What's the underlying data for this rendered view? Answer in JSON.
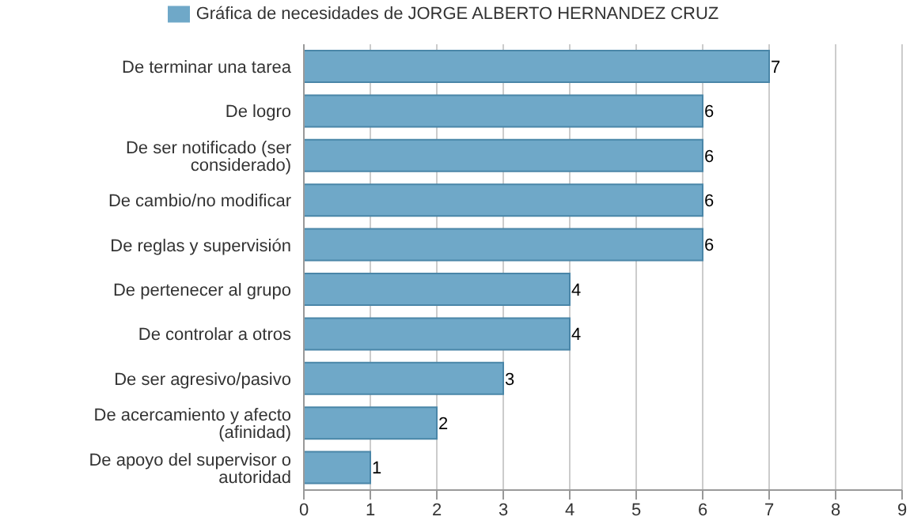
{
  "chart_data": {
    "type": "bar",
    "orientation": "horizontal",
    "categories": [
      "De terminar una tarea",
      "De logro",
      "De ser notificado (ser considerado)",
      "De cambio/no modificar",
      "De reglas y supervisión",
      "De pertenecer al grupo",
      "De controlar a otros",
      "De ser agresivo/pasivo",
      "De acercamiento y afecto (afinidad)",
      "De apoyo del supervisor o autoridad"
    ],
    "series": [
      {
        "name": "Gráfica de necesidades de JORGE ALBERTO HERNANDEZ CRUZ",
        "color": "#6fa8c8",
        "values": [
          7,
          6,
          6,
          6,
          6,
          4,
          4,
          3,
          2,
          1
        ]
      }
    ],
    "xlim": [
      0,
      9
    ],
    "xticks": [
      0,
      1,
      2,
      3,
      4,
      5,
      6,
      7,
      8,
      9
    ],
    "grid": "x",
    "legend": "top",
    "data_labels": true
  }
}
